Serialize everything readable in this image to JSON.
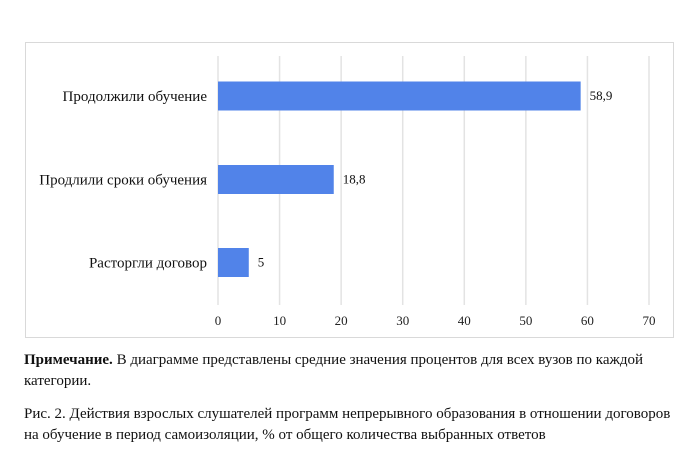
{
  "chart_data": {
    "type": "bar",
    "orientation": "horizontal",
    "categories": [
      "Продолжили обучение",
      "Продлили сроки обучения",
      "Расторгли договор"
    ],
    "values": [
      58.9,
      18.8,
      5
    ],
    "value_labels": [
      "58,9",
      "18,8",
      "5"
    ],
    "xlim": [
      0,
      70
    ],
    "xticks": [
      "0",
      "10",
      "20",
      "30",
      "40",
      "50",
      "60",
      "70"
    ],
    "grid": true,
    "bar_color": "#5183E9",
    "title": "",
    "xlabel": "",
    "ylabel": ""
  },
  "note": {
    "bold": "Примечание.",
    "text": " В диаграмме представлены средние значения процентов для всех вузов по каждой категории."
  },
  "caption": "Рис. 2. Действия взрослых слушателей программ непрерывного образования в отношении договоров на обучение в период самоизоляции, % от общего количества выбранных ответов"
}
